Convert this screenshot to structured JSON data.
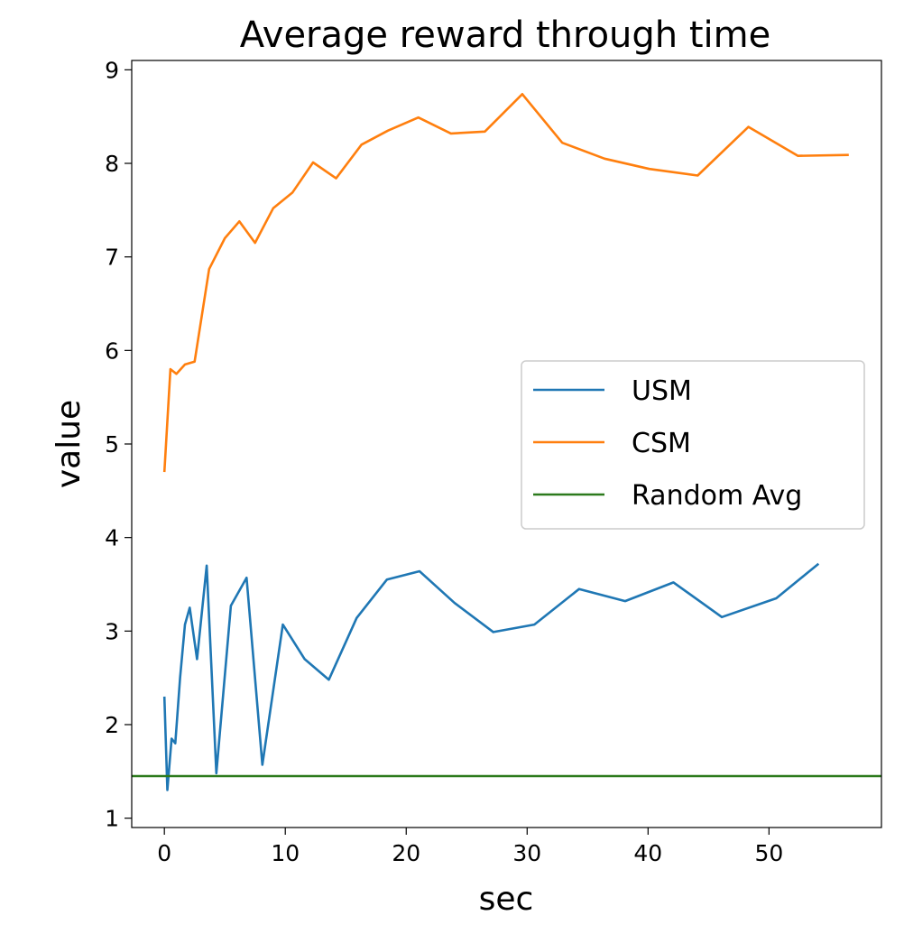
{
  "chart_data": {
    "type": "line",
    "title": "Average reward through time",
    "xlabel": "sec",
    "ylabel": "value",
    "xlim": [
      -2.7,
      59.3
    ],
    "ylim": [
      0.9,
      9.1
    ],
    "xticks": [
      0,
      10,
      20,
      30,
      40,
      50
    ],
    "yticks": [
      1,
      2,
      3,
      4,
      5,
      6,
      7,
      8,
      9
    ],
    "grid": false,
    "legend_position": "center-right",
    "series": [
      {
        "name": "USM",
        "color": "#1f77b4",
        "points": [
          [
            0.0,
            2.3
          ],
          [
            0.25,
            1.3
          ],
          [
            0.6,
            1.85
          ],
          [
            0.9,
            1.8
          ],
          [
            1.3,
            2.5
          ],
          [
            1.7,
            3.07
          ],
          [
            2.1,
            3.25
          ],
          [
            2.7,
            2.7
          ],
          [
            3.5,
            3.7
          ],
          [
            4.3,
            1.48
          ],
          [
            5.5,
            3.27
          ],
          [
            6.8,
            3.57
          ],
          [
            8.1,
            1.57
          ],
          [
            9.8,
            3.07
          ],
          [
            11.6,
            2.7
          ],
          [
            13.6,
            2.48
          ],
          [
            15.9,
            3.14
          ],
          [
            18.4,
            3.55
          ],
          [
            21.1,
            3.64
          ],
          [
            24.0,
            3.3
          ],
          [
            27.2,
            2.99
          ],
          [
            30.6,
            3.07
          ],
          [
            34.3,
            3.45
          ],
          [
            38.1,
            3.32
          ],
          [
            42.1,
            3.52
          ],
          [
            46.1,
            3.15
          ],
          [
            50.6,
            3.35
          ],
          [
            54.1,
            3.72
          ]
        ]
      },
      {
        "name": "CSM",
        "color": "#ff7f0e",
        "points": [
          [
            0.0,
            4.7
          ],
          [
            0.5,
            5.8
          ],
          [
            1.0,
            5.75
          ],
          [
            1.7,
            5.85
          ],
          [
            2.5,
            5.88
          ],
          [
            3.7,
            6.87
          ],
          [
            5.0,
            7.2
          ],
          [
            6.2,
            7.38
          ],
          [
            7.5,
            7.15
          ],
          [
            9.0,
            7.52
          ],
          [
            10.6,
            7.69
          ],
          [
            12.3,
            8.01
          ],
          [
            14.2,
            7.84
          ],
          [
            16.3,
            8.2
          ],
          [
            18.5,
            8.35
          ],
          [
            21.0,
            8.49
          ],
          [
            23.7,
            8.32
          ],
          [
            26.5,
            8.34
          ],
          [
            29.6,
            8.74
          ],
          [
            32.9,
            8.22
          ],
          [
            36.4,
            8.05
          ],
          [
            40.1,
            7.94
          ],
          [
            44.1,
            7.87
          ],
          [
            48.3,
            8.39
          ],
          [
            52.4,
            8.08
          ],
          [
            56.6,
            8.09
          ]
        ]
      },
      {
        "name": "Random Avg",
        "color": "#2c7a1c",
        "points": [
          [
            -2.7,
            1.45
          ],
          [
            59.3,
            1.45
          ]
        ]
      }
    ]
  }
}
